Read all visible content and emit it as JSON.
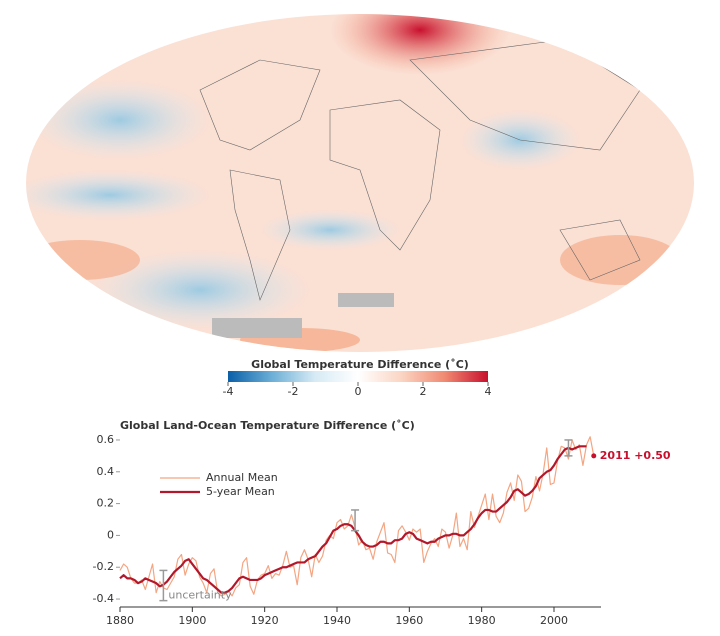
{
  "chart_data": [
    {
      "type": "map",
      "colorbar_title": "Global Temperature Difference (˚C)",
      "clim": [
        -4,
        4
      ],
      "cticks": [
        -4,
        -2,
        0,
        2,
        4
      ],
      "colors": [
        "#0a5fa8",
        "#6baed6",
        "#d6eaf5",
        "#ffffff",
        "#fbd5c4",
        "#f08a72",
        "#c8102e"
      ]
    },
    {
      "type": "line",
      "title": "Global Land-Ocean Temperature Difference (˚C)",
      "x": [
        1880,
        1881,
        1882,
        1883,
        1884,
        1885,
        1886,
        1887,
        1888,
        1889,
        1890,
        1891,
        1892,
        1893,
        1894,
        1895,
        1896,
        1897,
        1898,
        1899,
        1900,
        1901,
        1902,
        1903,
        1904,
        1905,
        1906,
        1907,
        1908,
        1909,
        1910,
        1911,
        1912,
        1913,
        1914,
        1915,
        1916,
        1917,
        1918,
        1919,
        1920,
        1921,
        1922,
        1923,
        1924,
        1925,
        1926,
        1927,
        1928,
        1929,
        1930,
        1931,
        1932,
        1933,
        1934,
        1935,
        1936,
        1937,
        1938,
        1939,
        1940,
        1941,
        1942,
        1943,
        1944,
        1945,
        1946,
        1947,
        1948,
        1949,
        1950,
        1951,
        1952,
        1953,
        1954,
        1955,
        1956,
        1957,
        1958,
        1959,
        1960,
        1961,
        1962,
        1963,
        1964,
        1965,
        1966,
        1967,
        1968,
        1969,
        1970,
        1971,
        1972,
        1973,
        1974,
        1975,
        1976,
        1977,
        1978,
        1979,
        1980,
        1981,
        1982,
        1983,
        1984,
        1985,
        1986,
        1987,
        1988,
        1989,
        1990,
        1991,
        1992,
        1993,
        1994,
        1995,
        1996,
        1997,
        1998,
        1999,
        2000,
        2001,
        2002,
        2003,
        2004,
        2005,
        2006,
        2007,
        2008,
        2009,
        2010,
        2011
      ],
      "series": [
        {
          "name": "Annual Mean",
          "color": "#f4a582",
          "values": [
            -0.22,
            -0.18,
            -0.2,
            -0.27,
            -0.3,
            -0.3,
            -0.28,
            -0.34,
            -0.26,
            -0.18,
            -0.36,
            -0.29,
            -0.33,
            -0.34,
            -0.3,
            -0.26,
            -0.15,
            -0.12,
            -0.25,
            -0.18,
            -0.14,
            -0.16,
            -0.26,
            -0.3,
            -0.36,
            -0.24,
            -0.21,
            -0.36,
            -0.38,
            -0.37,
            -0.35,
            -0.38,
            -0.33,
            -0.31,
            -0.17,
            -0.14,
            -0.32,
            -0.37,
            -0.28,
            -0.25,
            -0.24,
            -0.19,
            -0.27,
            -0.24,
            -0.25,
            -0.19,
            -0.1,
            -0.2,
            -0.19,
            -0.31,
            -0.14,
            -0.09,
            -0.15,
            -0.26,
            -0.12,
            -0.17,
            -0.13,
            -0.03,
            0.0,
            -0.02,
            0.08,
            0.1,
            0.04,
            0.06,
            0.13,
            0.05,
            -0.06,
            -0.03,
            -0.09,
            -0.08,
            -0.15,
            -0.04,
            0.02,
            0.08,
            -0.11,
            -0.12,
            -0.17,
            0.03,
            0.06,
            0.02,
            -0.03,
            0.04,
            0.02,
            0.04,
            -0.17,
            -0.1,
            -0.05,
            -0.02,
            -0.07,
            0.04,
            0.02,
            -0.08,
            0.0,
            0.14,
            -0.07,
            -0.02,
            -0.09,
            0.15,
            0.05,
            0.12,
            0.19,
            0.26,
            0.1,
            0.26,
            0.12,
            0.08,
            0.14,
            0.27,
            0.33,
            0.22,
            0.38,
            0.34,
            0.15,
            0.17,
            0.24,
            0.37,
            0.28,
            0.39,
            0.55,
            0.32,
            0.33,
            0.47,
            0.56,
            0.55,
            0.48,
            0.6,
            0.54,
            0.57,
            0.44,
            0.57,
            0.62,
            0.5
          ]
        },
        {
          "name": "5-year Mean",
          "color": "#b2182b",
          "values": [
            -0.27,
            -0.25,
            -0.27,
            -0.27,
            -0.28,
            -0.3,
            -0.29,
            -0.27,
            -0.28,
            -0.29,
            -0.3,
            -0.32,
            -0.31,
            -0.29,
            -0.26,
            -0.23,
            -0.21,
            -0.19,
            -0.16,
            -0.15,
            -0.18,
            -0.21,
            -0.24,
            -0.27,
            -0.28,
            -0.3,
            -0.32,
            -0.34,
            -0.36,
            -0.36,
            -0.35,
            -0.33,
            -0.3,
            -0.27,
            -0.26,
            -0.27,
            -0.28,
            -0.28,
            -0.28,
            -0.27,
            -0.25,
            -0.24,
            -0.23,
            -0.22,
            -0.21,
            -0.2,
            -0.2,
            -0.19,
            -0.18,
            -0.17,
            -0.17,
            -0.17,
            -0.15,
            -0.14,
            -0.13,
            -0.1,
            -0.07,
            -0.05,
            -0.01,
            0.03,
            0.04,
            0.06,
            0.07,
            0.07,
            0.06,
            0.03,
            0.0,
            -0.04,
            -0.06,
            -0.07,
            -0.07,
            -0.06,
            -0.04,
            -0.04,
            -0.05,
            -0.05,
            -0.03,
            -0.03,
            -0.02,
            0.01,
            0.02,
            0.01,
            -0.02,
            -0.03,
            -0.04,
            -0.05,
            -0.04,
            -0.04,
            -0.02,
            -0.01,
            0.0,
            0.0,
            0.01,
            0.01,
            0.0,
            0.0,
            0.02,
            0.04,
            0.07,
            0.11,
            0.14,
            0.16,
            0.16,
            0.15,
            0.15,
            0.17,
            0.19,
            0.21,
            0.24,
            0.28,
            0.29,
            0.27,
            0.25,
            0.26,
            0.28,
            0.31,
            0.36,
            0.38,
            0.4,
            0.41,
            0.44,
            0.48,
            0.51,
            0.54,
            0.55,
            0.54,
            0.55,
            0.56,
            0.56,
            0.56,
            null,
            null
          ]
        }
      ],
      "xlim": [
        1880,
        2013
      ],
      "xticks": [
        1880,
        1900,
        1920,
        1940,
        1960,
        1980,
        2000
      ],
      "ylim": [
        -0.45,
        0.65
      ],
      "yticks": [
        -0.4,
        -0.2,
        0,
        0.2,
        0.4,
        0.6
      ],
      "uncertainty_label": "uncertainty",
      "uncertainty": [
        {
          "x": 1892,
          "low": -0.41,
          "high": -0.22
        },
        {
          "x": 1945,
          "low": 0.03,
          "high": 0.16
        },
        {
          "x": 2004,
          "low": 0.5,
          "high": 0.6
        }
      ],
      "end_label": "2011 +0.50",
      "end_color": "#c8102e"
    }
  ]
}
